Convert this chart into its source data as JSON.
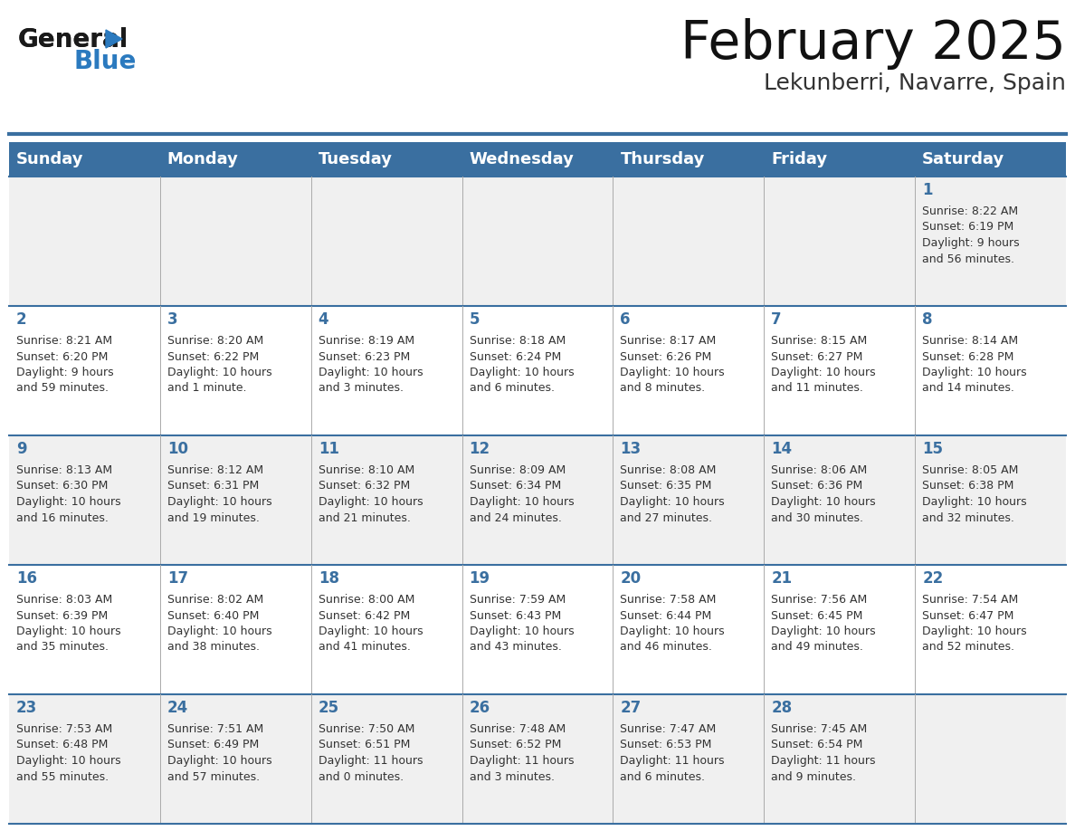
{
  "title": "February 2025",
  "subtitle": "Lekunberri, Navarre, Spain",
  "header_color": "#3a6fa0",
  "header_text_color": "#ffffff",
  "cell_bg_color_odd": "#f0f0f0",
  "cell_bg_color_even": "#ffffff",
  "day_number_color": "#3a6fa0",
  "text_color": "#333333",
  "border_color": "#3a6fa0",
  "grid_line_color": "#aaaaaa",
  "days_of_week": [
    "Sunday",
    "Monday",
    "Tuesday",
    "Wednesday",
    "Thursday",
    "Friday",
    "Saturday"
  ],
  "weeks": [
    [
      {
        "day": null,
        "info": null
      },
      {
        "day": null,
        "info": null
      },
      {
        "day": null,
        "info": null
      },
      {
        "day": null,
        "info": null
      },
      {
        "day": null,
        "info": null
      },
      {
        "day": null,
        "info": null
      },
      {
        "day": 1,
        "info": "Sunrise: 8:22 AM\nSunset: 6:19 PM\nDaylight: 9 hours\nand 56 minutes."
      }
    ],
    [
      {
        "day": 2,
        "info": "Sunrise: 8:21 AM\nSunset: 6:20 PM\nDaylight: 9 hours\nand 59 minutes."
      },
      {
        "day": 3,
        "info": "Sunrise: 8:20 AM\nSunset: 6:22 PM\nDaylight: 10 hours\nand 1 minute."
      },
      {
        "day": 4,
        "info": "Sunrise: 8:19 AM\nSunset: 6:23 PM\nDaylight: 10 hours\nand 3 minutes."
      },
      {
        "day": 5,
        "info": "Sunrise: 8:18 AM\nSunset: 6:24 PM\nDaylight: 10 hours\nand 6 minutes."
      },
      {
        "day": 6,
        "info": "Sunrise: 8:17 AM\nSunset: 6:26 PM\nDaylight: 10 hours\nand 8 minutes."
      },
      {
        "day": 7,
        "info": "Sunrise: 8:15 AM\nSunset: 6:27 PM\nDaylight: 10 hours\nand 11 minutes."
      },
      {
        "day": 8,
        "info": "Sunrise: 8:14 AM\nSunset: 6:28 PM\nDaylight: 10 hours\nand 14 minutes."
      }
    ],
    [
      {
        "day": 9,
        "info": "Sunrise: 8:13 AM\nSunset: 6:30 PM\nDaylight: 10 hours\nand 16 minutes."
      },
      {
        "day": 10,
        "info": "Sunrise: 8:12 AM\nSunset: 6:31 PM\nDaylight: 10 hours\nand 19 minutes."
      },
      {
        "day": 11,
        "info": "Sunrise: 8:10 AM\nSunset: 6:32 PM\nDaylight: 10 hours\nand 21 minutes."
      },
      {
        "day": 12,
        "info": "Sunrise: 8:09 AM\nSunset: 6:34 PM\nDaylight: 10 hours\nand 24 minutes."
      },
      {
        "day": 13,
        "info": "Sunrise: 8:08 AM\nSunset: 6:35 PM\nDaylight: 10 hours\nand 27 minutes."
      },
      {
        "day": 14,
        "info": "Sunrise: 8:06 AM\nSunset: 6:36 PM\nDaylight: 10 hours\nand 30 minutes."
      },
      {
        "day": 15,
        "info": "Sunrise: 8:05 AM\nSunset: 6:38 PM\nDaylight: 10 hours\nand 32 minutes."
      }
    ],
    [
      {
        "day": 16,
        "info": "Sunrise: 8:03 AM\nSunset: 6:39 PM\nDaylight: 10 hours\nand 35 minutes."
      },
      {
        "day": 17,
        "info": "Sunrise: 8:02 AM\nSunset: 6:40 PM\nDaylight: 10 hours\nand 38 minutes."
      },
      {
        "day": 18,
        "info": "Sunrise: 8:00 AM\nSunset: 6:42 PM\nDaylight: 10 hours\nand 41 minutes."
      },
      {
        "day": 19,
        "info": "Sunrise: 7:59 AM\nSunset: 6:43 PM\nDaylight: 10 hours\nand 43 minutes."
      },
      {
        "day": 20,
        "info": "Sunrise: 7:58 AM\nSunset: 6:44 PM\nDaylight: 10 hours\nand 46 minutes."
      },
      {
        "day": 21,
        "info": "Sunrise: 7:56 AM\nSunset: 6:45 PM\nDaylight: 10 hours\nand 49 minutes."
      },
      {
        "day": 22,
        "info": "Sunrise: 7:54 AM\nSunset: 6:47 PM\nDaylight: 10 hours\nand 52 minutes."
      }
    ],
    [
      {
        "day": 23,
        "info": "Sunrise: 7:53 AM\nSunset: 6:48 PM\nDaylight: 10 hours\nand 55 minutes."
      },
      {
        "day": 24,
        "info": "Sunrise: 7:51 AM\nSunset: 6:49 PM\nDaylight: 10 hours\nand 57 minutes."
      },
      {
        "day": 25,
        "info": "Sunrise: 7:50 AM\nSunset: 6:51 PM\nDaylight: 11 hours\nand 0 minutes."
      },
      {
        "day": 26,
        "info": "Sunrise: 7:48 AM\nSunset: 6:52 PM\nDaylight: 11 hours\nand 3 minutes."
      },
      {
        "day": 27,
        "info": "Sunrise: 7:47 AM\nSunset: 6:53 PM\nDaylight: 11 hours\nand 6 minutes."
      },
      {
        "day": 28,
        "info": "Sunrise: 7:45 AM\nSunset: 6:54 PM\nDaylight: 11 hours\nand 9 minutes."
      },
      {
        "day": null,
        "info": null
      }
    ]
  ],
  "logo_color_general": "#1a1a1a",
  "logo_color_blue": "#2b7abf",
  "logo_triangle_color": "#2b7abf",
  "title_fontsize": 42,
  "subtitle_fontsize": 18,
  "header_fontsize": 13,
  "day_num_fontsize": 12,
  "cell_text_fontsize": 9
}
